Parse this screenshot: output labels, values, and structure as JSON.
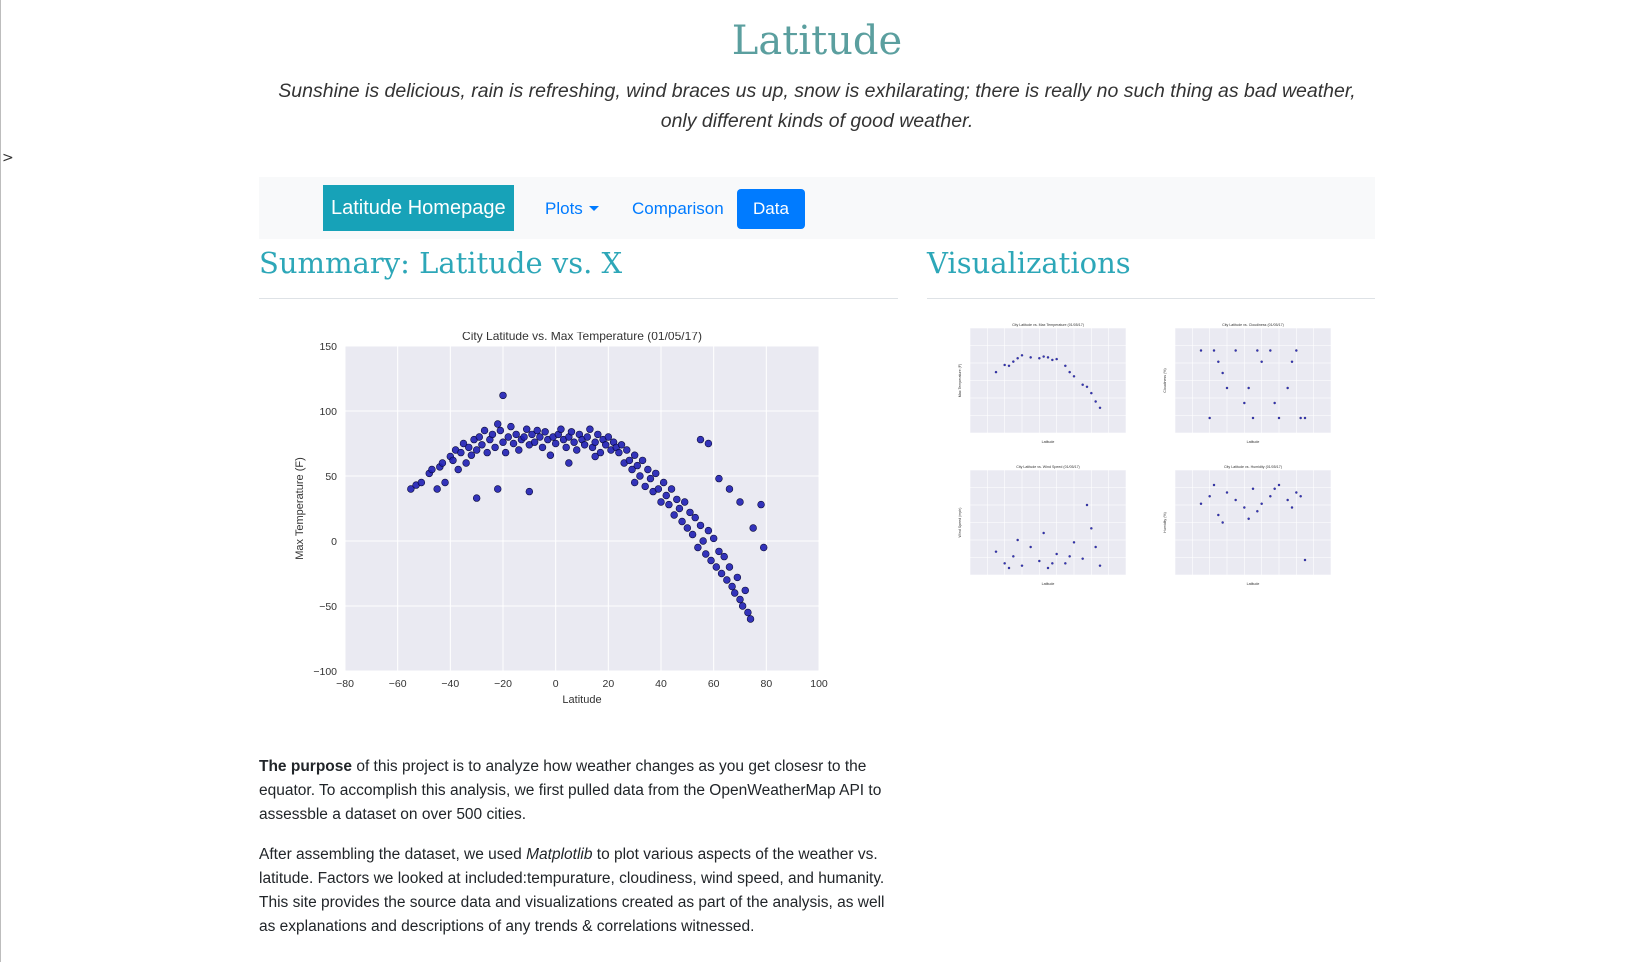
{
  "header": {
    "title": "Latitude",
    "subtitle": "Sunshine is delicious, rain is refreshing, wind braces us up, snow is exhilarating; there is really no such thing as bad weather, only different kinds of good weather."
  },
  "edge_marker": ">",
  "nav": {
    "brand": "Latitude Homepage",
    "plots": "Plots",
    "comparison": "Comparison",
    "data": "Data"
  },
  "summary": {
    "heading": "Summary: Latitude vs. X",
    "p1_bold": "The purpose",
    "p1_rest": " of this project is to analyze how weather changes as you get closesr to the equator. To accomplish this analysis, we first pulled data from the OpenWeatherMap API to assessble a dataset on over 500 cities.",
    "p2_a": "After assembling the dataset, we used ",
    "p2_em": "Matplotlib",
    "p2_b": " to plot various aspects of the weather vs. latitude. Factors we looked at included:tempurature, cloudiness, wind speed, and humanity. This site provides the source data and visualizations created as part of the analysis, as well as explanations and descriptions of any trends & correlations witnessed."
  },
  "visualizations": {
    "heading": "Visualizations"
  },
  "colors": {
    "accent": "#2da7b8",
    "title": "#5b9f9f",
    "brand_bg": "#17a2b8",
    "link": "#007bff",
    "point": "#1f1fb4"
  },
  "chart_data": [
    {
      "type": "scatter",
      "title": "City Latitude vs. Max Temperature (01/05/17)",
      "xlabel": "Latitude",
      "ylabel": "Max Temperature (F)",
      "xlim": [
        -80,
        100
      ],
      "ylim": [
        -100,
        150
      ],
      "xticks": [
        "−80",
        "−60",
        "−40",
        "−20",
        "0",
        "20",
        "40",
        "60",
        "80",
        "100"
      ],
      "yticks": [
        "−100",
        "−50",
        "0",
        "50",
        "100",
        "150"
      ],
      "grid": true,
      "points": [
        [
          -55,
          40
        ],
        [
          -53,
          43
        ],
        [
          -51,
          45
        ],
        [
          -48,
          52
        ],
        [
          -47,
          55
        ],
        [
          -45,
          40
        ],
        [
          -44,
          57
        ],
        [
          -43,
          60
        ],
        [
          -42,
          45
        ],
        [
          -40,
          65
        ],
        [
          -39,
          62
        ],
        [
          -38,
          70
        ],
        [
          -37,
          55
        ],
        [
          -36,
          68
        ],
        [
          -35,
          75
        ],
        [
          -34,
          60
        ],
        [
          -33,
          72
        ],
        [
          -32,
          66
        ],
        [
          -31,
          78
        ],
        [
          -30,
          70
        ],
        [
          -30,
          33
        ],
        [
          -29,
          80
        ],
        [
          -28,
          74
        ],
        [
          -27,
          85
        ],
        [
          -26,
          68
        ],
        [
          -25,
          78
        ],
        [
          -24,
          82
        ],
        [
          -23,
          72
        ],
        [
          -22,
          90
        ],
        [
          -21,
          85
        ],
        [
          -20,
          112
        ],
        [
          -20,
          76
        ],
        [
          -19,
          68
        ],
        [
          -18,
          80
        ],
        [
          -17,
          88
        ],
        [
          -16,
          75
        ],
        [
          -15,
          82
        ],
        [
          -14,
          70
        ],
        [
          -13,
          78
        ],
        [
          -12,
          80
        ],
        [
          -11,
          86
        ],
        [
          -10,
          74
        ],
        [
          -9,
          82
        ],
        [
          -8,
          76
        ],
        [
          -7,
          85
        ],
        [
          -6,
          80
        ],
        [
          -5,
          72
        ],
        [
          -4,
          84
        ],
        [
          -3,
          78
        ],
        [
          -2,
          66
        ],
        [
          -1,
          80
        ],
        [
          0,
          75
        ],
        [
          1,
          82
        ],
        [
          2,
          86
        ],
        [
          3,
          78
        ],
        [
          4,
          72
        ],
        [
          5,
          80
        ],
        [
          6,
          84
        ],
        [
          7,
          76
        ],
        [
          8,
          70
        ],
        [
          9,
          82
        ],
        [
          10,
          78
        ],
        [
          11,
          74
        ],
        [
          12,
          80
        ],
        [
          13,
          86
        ],
        [
          14,
          72
        ],
        [
          15,
          76
        ],
        [
          16,
          82
        ],
        [
          17,
          68
        ],
        [
          18,
          78
        ],
        [
          19,
          74
        ],
        [
          20,
          80
        ],
        [
          21,
          70
        ],
        [
          22,
          76
        ],
        [
          23,
          72
        ],
        [
          24,
          68
        ],
        [
          25,
          74
        ],
        [
          26,
          60
        ],
        [
          27,
          70
        ],
        [
          28,
          62
        ],
        [
          29,
          55
        ],
        [
          30,
          66
        ],
        [
          30,
          45
        ],
        [
          31,
          58
        ],
        [
          32,
          50
        ],
        [
          33,
          62
        ],
        [
          34,
          42
        ],
        [
          35,
          55
        ],
        [
          36,
          48
        ],
        [
          37,
          38
        ],
        [
          38,
          52
        ],
        [
          39,
          40
        ],
        [
          40,
          30
        ],
        [
          41,
          45
        ],
        [
          42,
          35
        ],
        [
          43,
          28
        ],
        [
          44,
          40
        ],
        [
          45,
          20
        ],
        [
          46,
          32
        ],
        [
          47,
          25
        ],
        [
          48,
          15
        ],
        [
          49,
          30
        ],
        [
          50,
          10
        ],
        [
          51,
          22
        ],
        [
          52,
          5
        ],
        [
          53,
          18
        ],
        [
          54,
          -5
        ],
        [
          55,
          12
        ],
        [
          56,
          0
        ],
        [
          57,
          -10
        ],
        [
          58,
          8
        ],
        [
          59,
          -15
        ],
        [
          60,
          2
        ],
        [
          61,
          -20
        ],
        [
          62,
          -8
        ],
        [
          63,
          -25
        ],
        [
          64,
          -12
        ],
        [
          65,
          -30
        ],
        [
          66,
          -20
        ],
        [
          67,
          -35
        ],
        [
          68,
          -40
        ],
        [
          69,
          -28
        ],
        [
          70,
          -45
        ],
        [
          71,
          -50
        ],
        [
          72,
          -38
        ],
        [
          73,
          -55
        ],
        [
          74,
          -60
        ],
        [
          55,
          78
        ],
        [
          58,
          75
        ],
        [
          62,
          48
        ],
        [
          66,
          40
        ],
        [
          70,
          30
        ],
        [
          75,
          10
        ],
        [
          78,
          28
        ],
        [
          79,
          -5
        ],
        [
          -22,
          40
        ],
        [
          -10,
          38
        ],
        [
          5,
          60
        ],
        [
          15,
          65
        ]
      ]
    },
    {
      "type": "scatter",
      "title": "City Latitude vs. Max Temperature (01/05/17)",
      "xlabel": "Latitude",
      "ylabel": "Max Temperature (F)",
      "xlim": [
        -80,
        100
      ],
      "ylim": [
        -100,
        150
      ],
      "grid": true,
      "points": [
        [
          -50,
          45
        ],
        [
          -40,
          62
        ],
        [
          -30,
          70
        ],
        [
          -20,
          85
        ],
        [
          -10,
          80
        ],
        [
          0,
          78
        ],
        [
          10,
          80
        ],
        [
          20,
          76
        ],
        [
          30,
          60
        ],
        [
          40,
          35
        ],
        [
          50,
          15
        ],
        [
          60,
          -5
        ],
        [
          70,
          -40
        ],
        [
          -25,
          78
        ],
        [
          15,
          74
        ],
        [
          35,
          45
        ],
        [
          55,
          10
        ],
        [
          65,
          -25
        ],
        [
          -35,
          60
        ],
        [
          5,
          82
        ]
      ]
    },
    {
      "type": "scatter",
      "title": "City Latitude vs. Cloudiness (01/05/17)",
      "xlabel": "Latitude",
      "ylabel": "Cloudiness (%)",
      "xlim": [
        -80,
        100
      ],
      "ylim": [
        -20,
        120
      ],
      "grid": true,
      "points": [
        [
          -50,
          90
        ],
        [
          -40,
          0
        ],
        [
          -30,
          75
        ],
        [
          -20,
          40
        ],
        [
          -10,
          90
        ],
        [
          0,
          20
        ],
        [
          10,
          0
        ],
        [
          20,
          75
        ],
        [
          30,
          90
        ],
        [
          40,
          0
        ],
        [
          50,
          40
        ],
        [
          60,
          90
        ],
        [
          70,
          0
        ],
        [
          -25,
          60
        ],
        [
          15,
          90
        ],
        [
          35,
          20
        ],
        [
          55,
          75
        ],
        [
          65,
          0
        ],
        [
          -35,
          90
        ],
        [
          5,
          40
        ]
      ]
    },
    {
      "type": "scatter",
      "title": "City Latitude vs. Wind Speed (01/05/17)",
      "xlabel": "Latitude",
      "ylabel": "Wind Speed (mph)",
      "xlim": [
        -80,
        100
      ],
      "ylim": [
        0,
        45
      ],
      "grid": true,
      "points": [
        [
          -50,
          10
        ],
        [
          -40,
          5
        ],
        [
          -30,
          8
        ],
        [
          -20,
          4
        ],
        [
          -10,
          12
        ],
        [
          0,
          6
        ],
        [
          10,
          3
        ],
        [
          20,
          9
        ],
        [
          30,
          5
        ],
        [
          40,
          14
        ],
        [
          50,
          7
        ],
        [
          60,
          20
        ],
        [
          70,
          4
        ],
        [
          -25,
          15
        ],
        [
          15,
          5
        ],
        [
          35,
          8
        ],
        [
          55,
          30
        ],
        [
          65,
          12
        ],
        [
          -35,
          3
        ],
        [
          5,
          18
        ]
      ]
    },
    {
      "type": "scatter",
      "title": "City Latitude vs. Humidity (01/05/17)",
      "xlabel": "Latitude",
      "ylabel": "Humidity (%)",
      "xlim": [
        -80,
        100
      ],
      "ylim": [
        -20,
        120
      ],
      "grid": true,
      "points": [
        [
          -50,
          75
        ],
        [
          -40,
          85
        ],
        [
          -30,
          60
        ],
        [
          -20,
          90
        ],
        [
          -10,
          80
        ],
        [
          0,
          70
        ],
        [
          10,
          95
        ],
        [
          20,
          75
        ],
        [
          30,
          85
        ],
        [
          40,
          100
        ],
        [
          50,
          80
        ],
        [
          60,
          90
        ],
        [
          70,
          0
        ],
        [
          -25,
          50
        ],
        [
          15,
          65
        ],
        [
          35,
          95
        ],
        [
          55,
          70
        ],
        [
          65,
          85
        ],
        [
          -35,
          100
        ],
        [
          5,
          55
        ]
      ]
    }
  ]
}
